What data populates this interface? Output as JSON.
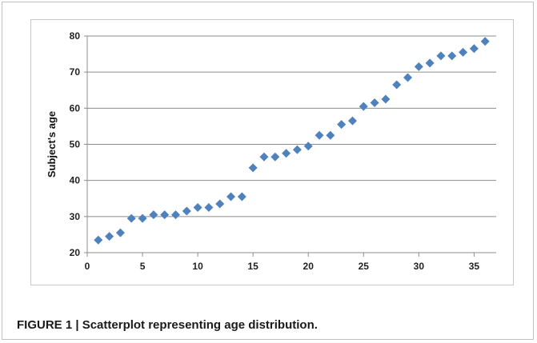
{
  "caption": "FIGURE 1 | Scatterplot representing age distribution.",
  "chart_data": {
    "type": "scatter",
    "title": "",
    "xlabel": "",
    "ylabel": "Subject's age",
    "xlim": [
      0,
      37
    ],
    "ylim": [
      20,
      80
    ],
    "x_ticks": [
      0,
      5,
      10,
      15,
      20,
      25,
      30,
      35
    ],
    "y_ticks": [
      20,
      30,
      40,
      50,
      60,
      70,
      80
    ],
    "grid": "horizontal",
    "marker_color": "#4F81BD",
    "marker": "diamond",
    "series": [
      {
        "x": [
          1,
          2,
          3,
          4,
          5,
          6,
          7,
          8,
          9,
          10,
          11,
          12,
          13,
          14,
          15,
          16,
          17,
          18,
          19,
          20,
          21,
          22,
          23,
          24,
          25,
          26,
          27,
          28,
          29,
          30,
          31,
          32,
          33,
          34,
          35,
          36
        ],
        "y": [
          23.5,
          24.5,
          25.5,
          29.5,
          29.5,
          30.5,
          30.5,
          30.5,
          31.5,
          32.5,
          32.5,
          33.5,
          35.5,
          35.5,
          43.5,
          46.5,
          46.5,
          47.5,
          48.5,
          49.5,
          52.5,
          52.5,
          55.5,
          56.5,
          60.5,
          61.5,
          62.5,
          66.5,
          68.5,
          71.5,
          72.5,
          74.5,
          74.5,
          75.5,
          76.5,
          78.5
        ]
      }
    ]
  }
}
